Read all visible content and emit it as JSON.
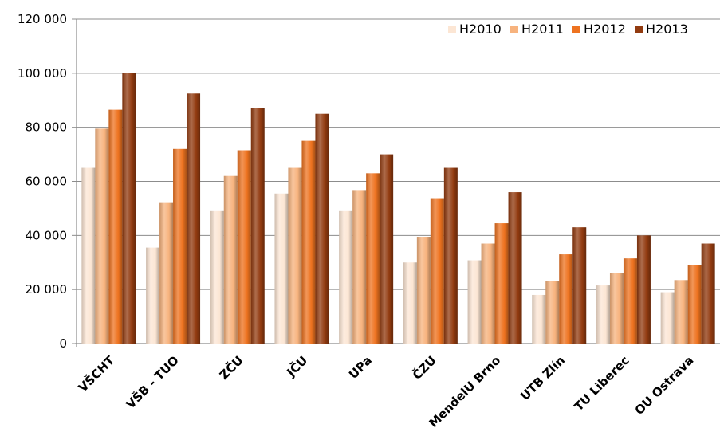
{
  "chart_data": {
    "type": "bar",
    "title": "",
    "xlabel": "",
    "ylabel": "",
    "ylim": [
      0,
      120000
    ],
    "y_ticks": [
      0,
      20000,
      40000,
      60000,
      80000,
      100000,
      120000
    ],
    "y_tick_labels": [
      "0",
      "20 000",
      "40 000",
      "60 000",
      "80 000",
      "100 000",
      "120 000"
    ],
    "grid": true,
    "legend_position": "top-right",
    "categories": [
      "VŠCHT",
      "VŠB - TUO",
      "ZČU",
      "JČU",
      "UPa",
      "ČZU",
      "MendelU Brno",
      "UTB Zlín",
      "TU Liberec",
      "OU Ostrava"
    ],
    "series": [
      {
        "name": "H2010",
        "color": "#fce6d4",
        "values": [
          65000,
          35500,
          49000,
          55500,
          49000,
          30000,
          30800,
          18000,
          21500,
          19000
        ]
      },
      {
        "name": "H2011",
        "color": "#f7b37e",
        "values": [
          79500,
          52000,
          62000,
          65000,
          56500,
          39500,
          37000,
          23000,
          26000,
          23500
        ]
      },
      {
        "name": "H2012",
        "color": "#ee7320",
        "values": [
          86500,
          72000,
          71500,
          75000,
          63000,
          53500,
          44500,
          33000,
          31500,
          29000
        ]
      },
      {
        "name": "H2013",
        "color": "#923b10",
        "values": [
          100000,
          92500,
          87000,
          85000,
          70000,
          65000,
          56000,
          43000,
          40000,
          37000
        ]
      }
    ]
  }
}
